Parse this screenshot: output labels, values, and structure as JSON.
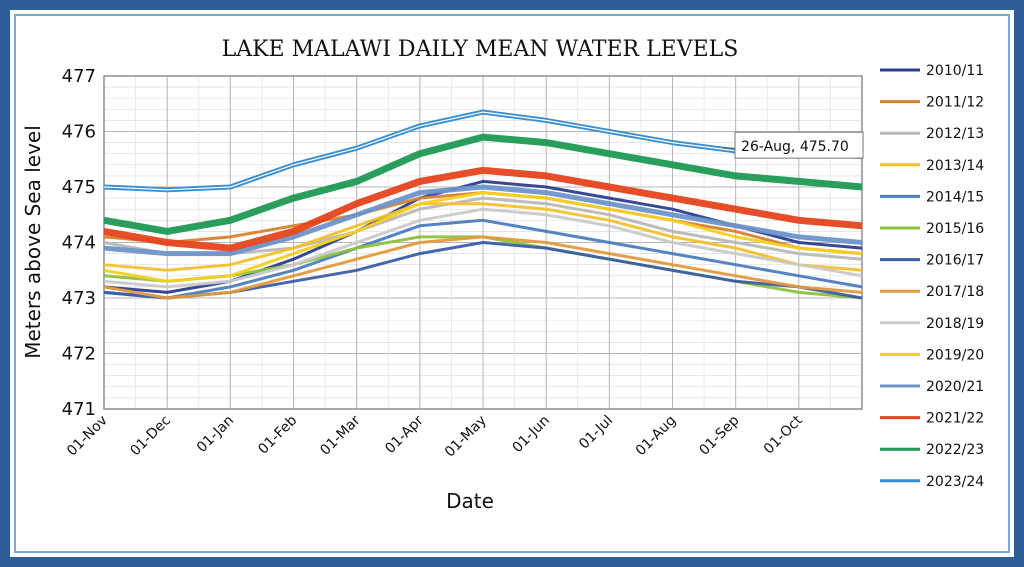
{
  "chart_data": {
    "type": "line",
    "title": "LAKE MALAWI DAILY MEAN WATER LEVELS",
    "xlabel": "Date",
    "ylabel": "Meters above Sea level",
    "ylim": [
      471,
      477
    ],
    "yticks": [
      471,
      472,
      473,
      474,
      475,
      476,
      477
    ],
    "categories": [
      "01-Nov",
      "01-Dec",
      "01-Jan",
      "01-Feb",
      "01-Mar",
      "01-Apr",
      "01-May",
      "01-Jun",
      "01-Jul",
      "01-Aug",
      "01-Sep",
      "01-Oct"
    ],
    "grid": true,
    "legend_position": "right",
    "series": [
      {
        "name": "2010/11",
        "color": "#2c3f8f",
        "points": [
          [
            0,
            473.2
          ],
          [
            1,
            473.1
          ],
          [
            2,
            473.3
          ],
          [
            3,
            473.7
          ],
          [
            4,
            474.2
          ],
          [
            5,
            474.8
          ],
          [
            6,
            475.1
          ],
          [
            7,
            475.0
          ],
          [
            8,
            474.8
          ],
          [
            9,
            474.6
          ],
          [
            10,
            474.3
          ],
          [
            11,
            474.0
          ],
          [
            12,
            473.9
          ]
        ]
      },
      {
        "name": "2011/12",
        "color": "#d9822b",
        "points": [
          [
            0,
            474.1
          ],
          [
            1,
            474.0
          ],
          [
            2,
            474.1
          ],
          [
            3,
            474.3
          ],
          [
            4,
            474.5
          ],
          [
            5,
            474.8
          ],
          [
            6,
            474.9
          ],
          [
            7,
            474.8
          ],
          [
            8,
            474.6
          ],
          [
            9,
            474.4
          ],
          [
            10,
            474.2
          ],
          [
            11,
            473.9
          ],
          [
            12,
            473.8
          ]
        ]
      },
      {
        "name": "2012/13",
        "color": "#b8b8b8",
        "points": [
          [
            0,
            474.0
          ],
          [
            1,
            473.8
          ],
          [
            2,
            473.8
          ],
          [
            3,
            473.9
          ],
          [
            4,
            474.2
          ],
          [
            5,
            474.6
          ],
          [
            6,
            474.8
          ],
          [
            7,
            474.7
          ],
          [
            8,
            474.5
          ],
          [
            9,
            474.2
          ],
          [
            10,
            474.0
          ],
          [
            11,
            473.8
          ],
          [
            12,
            473.7
          ]
        ]
      },
      {
        "name": "2013/14",
        "color": "#f2c12e",
        "points": [
          [
            0,
            473.6
          ],
          [
            1,
            473.5
          ],
          [
            2,
            473.6
          ],
          [
            3,
            473.9
          ],
          [
            4,
            474.3
          ],
          [
            5,
            474.7
          ],
          [
            6,
            474.7
          ],
          [
            7,
            474.6
          ],
          [
            8,
            474.4
          ],
          [
            9,
            474.1
          ],
          [
            10,
            473.9
          ],
          [
            11,
            473.6
          ],
          [
            12,
            473.5
          ]
        ]
      },
      {
        "name": "2014/15",
        "color": "#4d7cbf",
        "points": [
          [
            0,
            473.1
          ],
          [
            1,
            473.0
          ],
          [
            2,
            473.2
          ],
          [
            3,
            473.5
          ],
          [
            4,
            473.9
          ],
          [
            5,
            474.3
          ],
          [
            6,
            474.4
          ],
          [
            7,
            474.2
          ],
          [
            8,
            474.0
          ],
          [
            9,
            473.8
          ],
          [
            10,
            473.6
          ],
          [
            11,
            473.4
          ],
          [
            12,
            473.2
          ]
        ]
      },
      {
        "name": "2015/16",
        "color": "#8cc23f",
        "points": [
          [
            0,
            473.4
          ],
          [
            1,
            473.3
          ],
          [
            2,
            473.4
          ],
          [
            3,
            473.6
          ],
          [
            4,
            473.9
          ],
          [
            5,
            474.1
          ],
          [
            6,
            474.1
          ],
          [
            7,
            473.9
          ],
          [
            8,
            473.7
          ],
          [
            9,
            473.5
          ],
          [
            10,
            473.3
          ],
          [
            11,
            473.1
          ],
          [
            12,
            473.0
          ]
        ]
      },
      {
        "name": "2016/17",
        "color": "#3b5ea8",
        "points": [
          [
            0,
            473.1
          ],
          [
            1,
            473.0
          ],
          [
            2,
            473.1
          ],
          [
            3,
            473.3
          ],
          [
            4,
            473.5
          ],
          [
            5,
            473.8
          ],
          [
            6,
            474.0
          ],
          [
            7,
            473.9
          ],
          [
            8,
            473.7
          ],
          [
            9,
            473.5
          ],
          [
            10,
            473.3
          ],
          [
            11,
            473.2
          ],
          [
            12,
            473.0
          ]
        ]
      },
      {
        "name": "2017/18",
        "color": "#e39a3c",
        "points": [
          [
            0,
            473.2
          ],
          [
            1,
            473.0
          ],
          [
            2,
            473.1
          ],
          [
            3,
            473.4
          ],
          [
            4,
            473.7
          ],
          [
            5,
            474.0
          ],
          [
            6,
            474.1
          ],
          [
            7,
            474.0
          ],
          [
            8,
            473.8
          ],
          [
            9,
            473.6
          ],
          [
            10,
            473.4
          ],
          [
            11,
            473.2
          ],
          [
            12,
            473.1
          ]
        ]
      },
      {
        "name": "2018/19",
        "color": "#c9c9c9",
        "points": [
          [
            0,
            473.3
          ],
          [
            1,
            473.2
          ],
          [
            2,
            473.3
          ],
          [
            3,
            473.6
          ],
          [
            4,
            474.0
          ],
          [
            5,
            474.4
          ],
          [
            6,
            474.6
          ],
          [
            7,
            474.5
          ],
          [
            8,
            474.3
          ],
          [
            9,
            474.0
          ],
          [
            10,
            473.8
          ],
          [
            11,
            473.6
          ],
          [
            12,
            473.4
          ]
        ]
      },
      {
        "name": "2019/20",
        "color": "#f5cf1f",
        "points": [
          [
            0,
            473.5
          ],
          [
            1,
            473.3
          ],
          [
            2,
            473.4
          ],
          [
            3,
            473.8
          ],
          [
            4,
            474.2
          ],
          [
            5,
            474.7
          ],
          [
            6,
            474.9
          ],
          [
            7,
            474.8
          ],
          [
            8,
            474.6
          ],
          [
            9,
            474.4
          ],
          [
            10,
            474.1
          ],
          [
            11,
            473.9
          ],
          [
            12,
            473.8
          ]
        ]
      },
      {
        "name": "2020/21",
        "color": "#6d93c9",
        "points": [
          [
            0,
            473.9
          ],
          [
            1,
            473.8
          ],
          [
            2,
            473.8
          ],
          [
            3,
            474.1
          ],
          [
            4,
            474.5
          ],
          [
            5,
            474.9
          ],
          [
            6,
            475.0
          ],
          [
            7,
            474.9
          ],
          [
            8,
            474.7
          ],
          [
            9,
            474.5
          ],
          [
            10,
            474.3
          ],
          [
            11,
            474.1
          ],
          [
            12,
            474.0
          ]
        ]
      },
      {
        "name": "2021/22",
        "color": "#e5431e",
        "points": [
          [
            0,
            474.2
          ],
          [
            1,
            474.0
          ],
          [
            2,
            473.9
          ],
          [
            3,
            474.2
          ],
          [
            4,
            474.7
          ],
          [
            5,
            475.1
          ],
          [
            6,
            475.3
          ],
          [
            7,
            475.2
          ],
          [
            8,
            475.0
          ],
          [
            9,
            474.8
          ],
          [
            10,
            474.6
          ],
          [
            11,
            474.4
          ],
          [
            12,
            474.3
          ]
        ]
      },
      {
        "name": "2022/23",
        "color": "#1f9a54",
        "points": [
          [
            0,
            474.4
          ],
          [
            1,
            474.2
          ],
          [
            2,
            474.4
          ],
          [
            3,
            474.8
          ],
          [
            4,
            475.1
          ],
          [
            5,
            475.6
          ],
          [
            6,
            475.9
          ],
          [
            7,
            475.8
          ],
          [
            8,
            475.6
          ],
          [
            9,
            475.4
          ],
          [
            10,
            475.2
          ],
          [
            11,
            475.1
          ],
          [
            12,
            475.0
          ]
        ]
      },
      {
        "name": "2023/24",
        "color": "#3a8fd0",
        "points": [
          [
            0,
            475.0
          ],
          [
            1,
            474.95
          ],
          [
            2,
            475.0
          ],
          [
            3,
            475.4
          ],
          [
            4,
            475.7
          ],
          [
            5,
            476.1
          ],
          [
            6,
            476.35
          ],
          [
            7,
            476.2
          ],
          [
            8,
            476.0
          ],
          [
            9,
            475.8
          ],
          [
            10,
            475.65
          ],
          [
            11,
            475.6
          ],
          [
            12,
            475.55
          ]
        ]
      }
    ],
    "annotation": {
      "text": "26-Aug, 475.70",
      "x": 9.8,
      "y": 475.7,
      "series": "2023/24"
    }
  }
}
